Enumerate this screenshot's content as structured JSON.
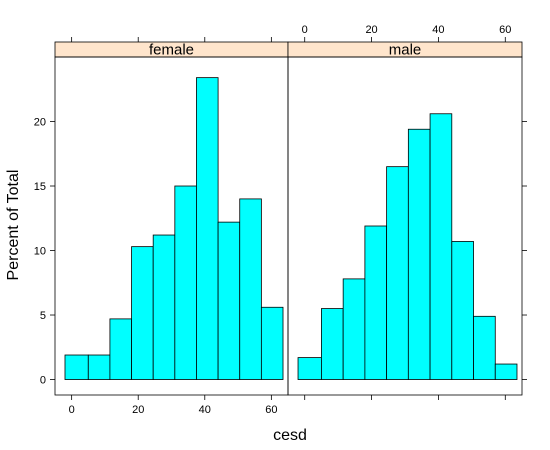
{
  "chart_data": {
    "type": "bar",
    "title": "",
    "xlabel": "cesd",
    "ylabel": "Percent of Total",
    "xlim": [
      -5,
      65
    ],
    "ylim": [
      -1.2,
      25
    ],
    "x_ticks": [
      0,
      20,
      40,
      60
    ],
    "y_ticks": [
      0,
      5,
      10,
      15,
      20
    ],
    "bin_edges": [
      -2,
      5,
      11.5,
      18,
      24.5,
      31,
      37.5,
      44,
      50.5,
      57,
      63.5
    ],
    "bar_color": "#00ffff",
    "strip_color": "#ffe5cc",
    "panels": [
      {
        "name": "female",
        "values": [
          1.9,
          1.9,
          4.7,
          10.3,
          11.2,
          15.0,
          23.4,
          12.2,
          14.0,
          5.6
        ]
      },
      {
        "name": "male",
        "values": [
          1.7,
          5.5,
          7.8,
          11.9,
          16.5,
          19.4,
          20.6,
          10.7,
          4.9,
          1.2
        ]
      }
    ]
  }
}
